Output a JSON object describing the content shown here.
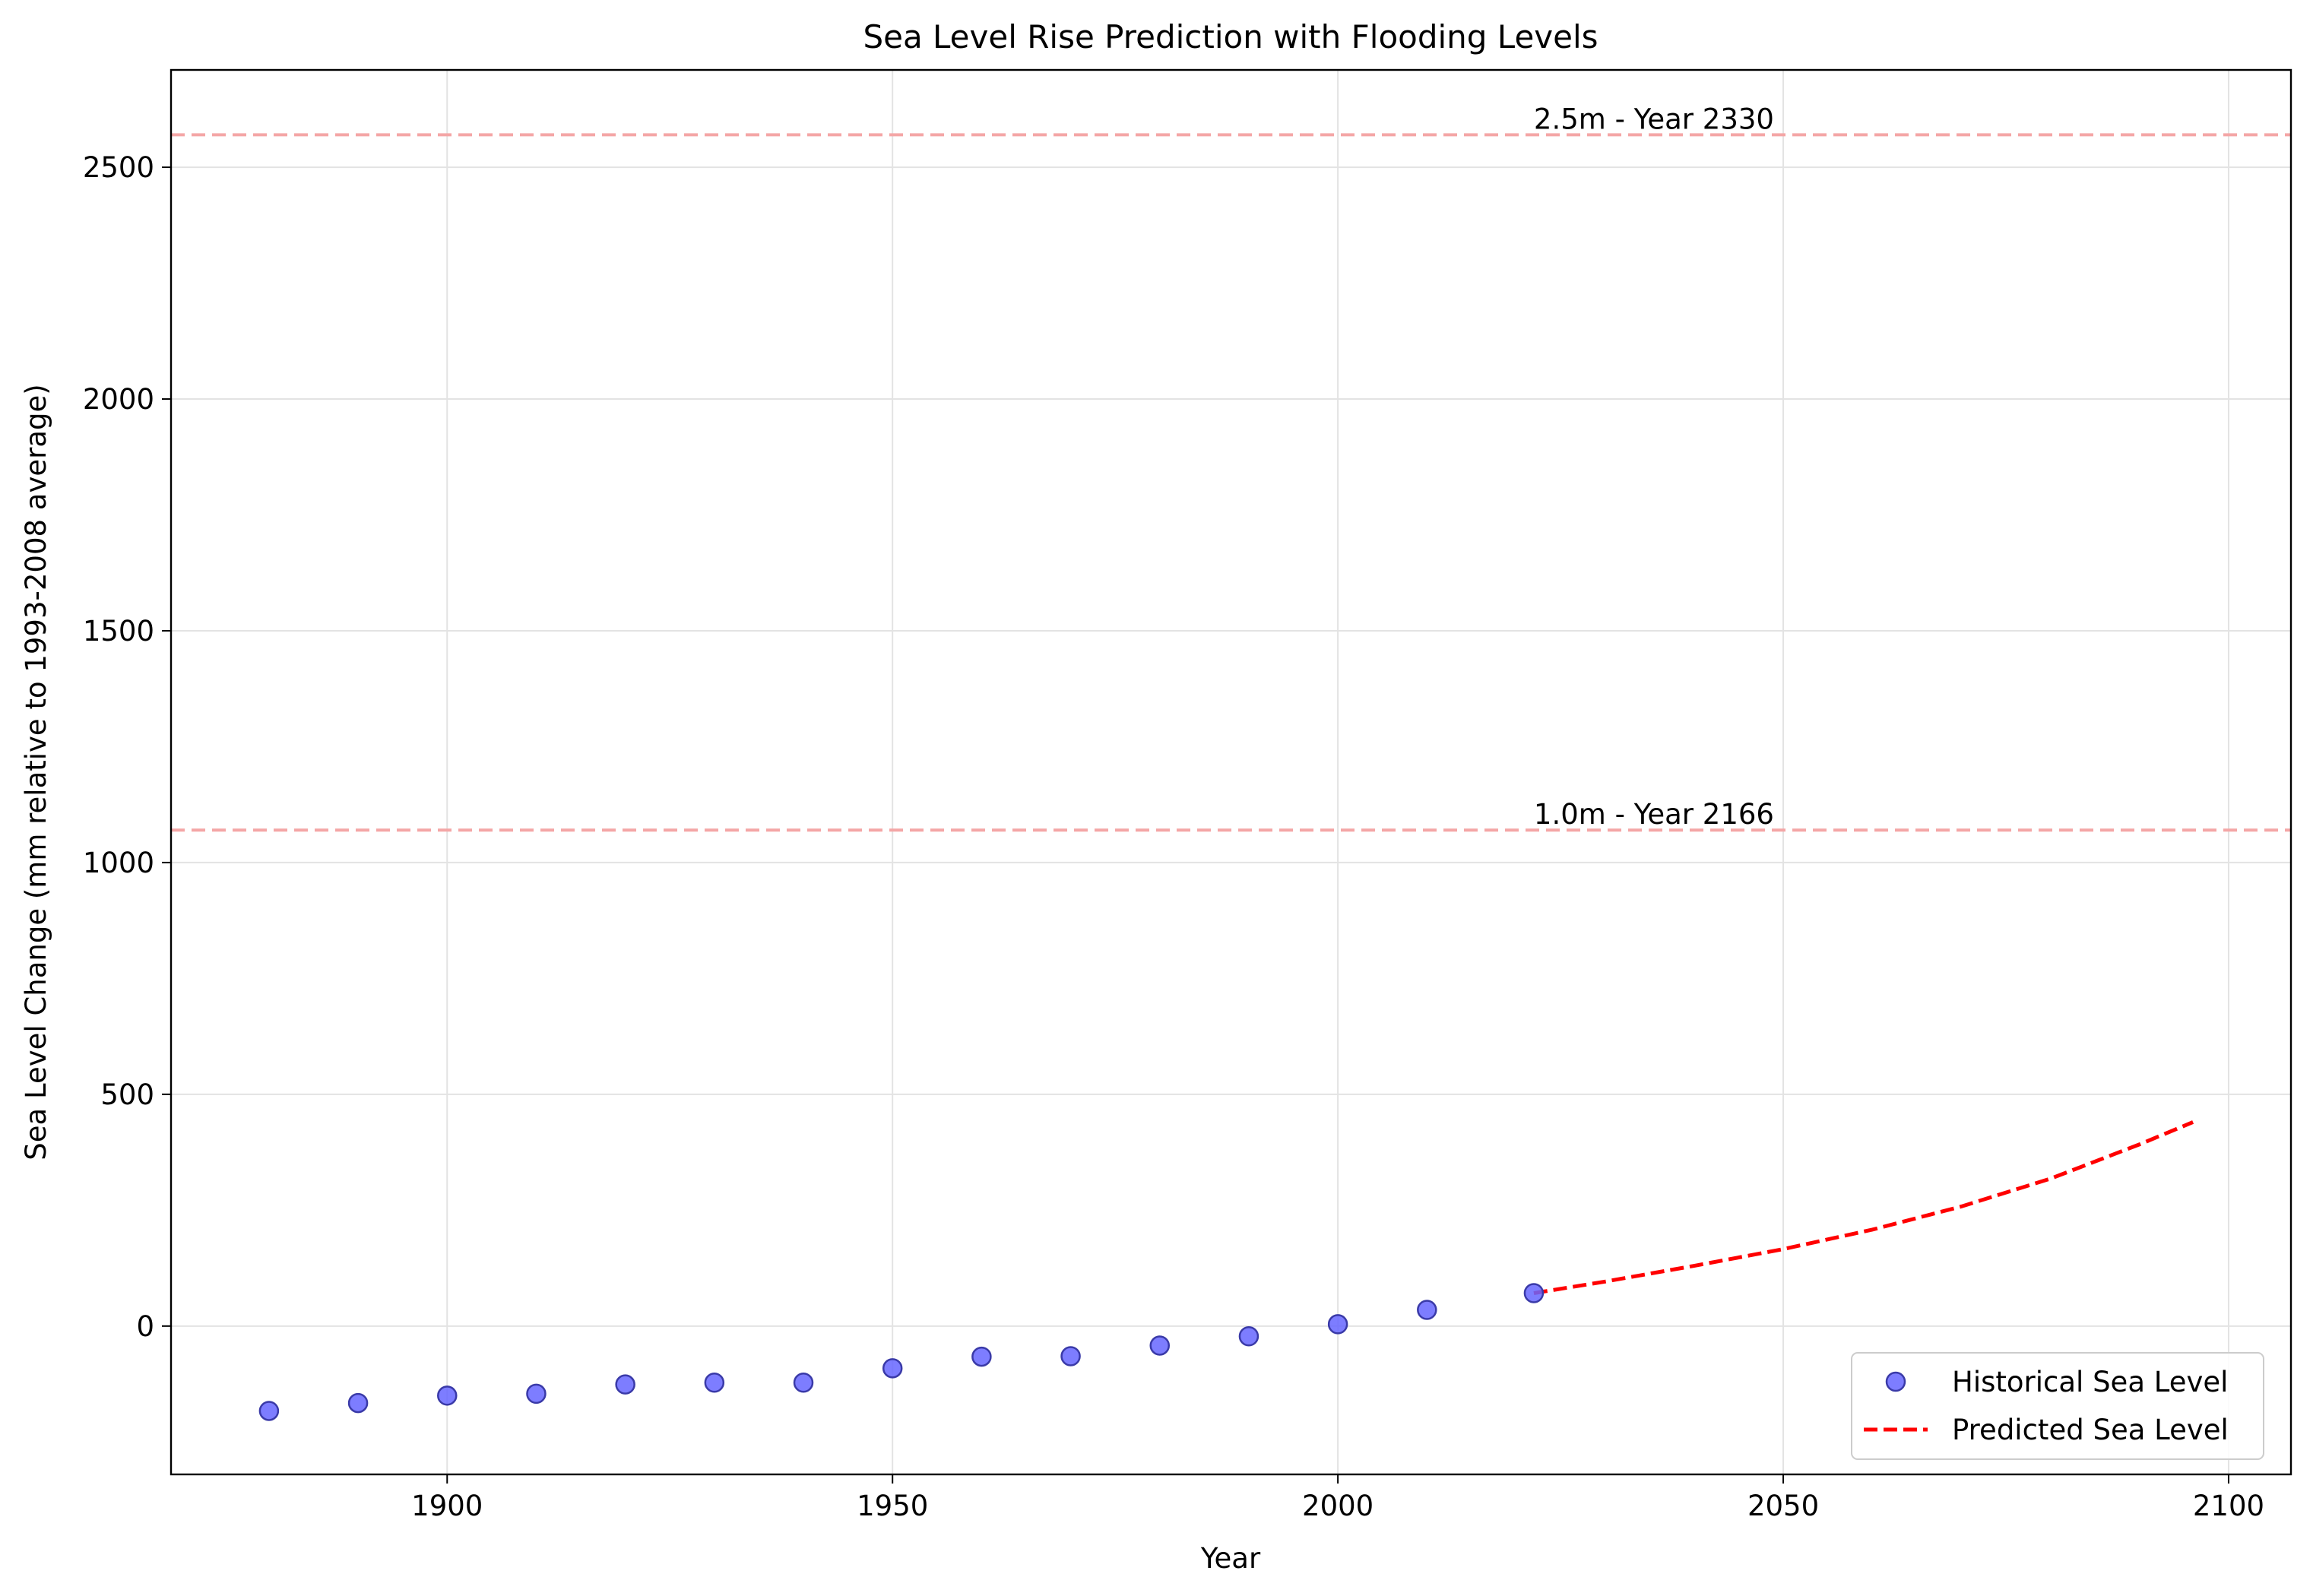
{
  "chart_data": {
    "type": "scatter",
    "title": "Sea Level Rise Prediction with Flooding Levels",
    "xlabel": "Year",
    "ylabel": "Sea Level Change (mm relative to 1993-2008 average)",
    "xlim": [
      1869,
      2107
    ],
    "ylim": [
      -320,
      2710
    ],
    "xticks": [
      1900,
      1950,
      2000,
      2050,
      2100
    ],
    "yticks": [
      0,
      500,
      1000,
      1500,
      2000,
      2500
    ],
    "grid": true,
    "legend_position": "lower-right",
    "series": [
      {
        "name": "Historical Sea Level",
        "kind": "scatter",
        "color": "#6666ff",
        "edge_color": "#3a3aa8",
        "x": [
          1880,
          1890,
          1900,
          1910,
          1920,
          1930,
          1940,
          1950,
          1960,
          1970,
          1980,
          1990,
          2000,
          2010,
          2022
        ],
        "y": [
          -183,
          -166,
          -150,
          -146,
          -126,
          -122,
          -122,
          -91,
          -66,
          -65,
          -42,
          -22,
          4,
          35,
          71
        ]
      },
      {
        "name": "Predicted Sea Level",
        "kind": "line",
        "style": "dashed",
        "color": "#ff0000",
        "x": [
          2022,
          2030,
          2040,
          2050,
          2060,
          2070,
          2080,
          2090,
          2096
        ],
        "y": [
          71,
          96,
          130,
          166,
          208,
          258,
          318,
          392,
          440
        ]
      }
    ],
    "reference_lines": [
      {
        "y": 2570,
        "color": "#f4a6a6",
        "label": "2.5m - Year 2330"
      },
      {
        "y": 1070,
        "color": "#f4a6a6",
        "label": "1.0m - Year 2166"
      }
    ]
  }
}
